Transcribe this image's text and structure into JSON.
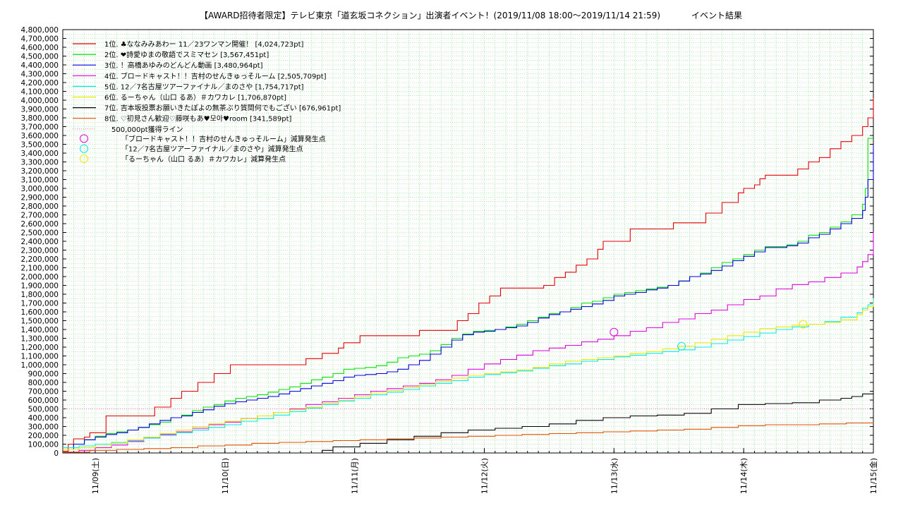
{
  "title": {
    "main": "【AWARD招待者限定】テレビ東京「道玄坂コネクション」出演者イベント！(2019/11/08 18:00〜2019/11/14 21:59)",
    "suffix": "イベント結果"
  },
  "colors": {
    "background": "#ffffff",
    "grid": "#00c800",
    "axis": "#000000"
  },
  "chart_data": {
    "type": "line",
    "x_unit": "elapsed hours from 2019/11/08 18:00",
    "xlim": [
      0,
      150
    ],
    "ylim": [
      0,
      4800000
    ],
    "y_ticks": [
      0,
      100000,
      200000,
      300000,
      400000,
      500000,
      600000,
      700000,
      800000,
      900000,
      1000000,
      1100000,
      1200000,
      1300000,
      1400000,
      1500000,
      1600000,
      1700000,
      1800000,
      1900000,
      2000000,
      2100000,
      2200000,
      2300000,
      2400000,
      2500000,
      2600000,
      2700000,
      2800000,
      2900000,
      3000000,
      3100000,
      3200000,
      3300000,
      3400000,
      3500000,
      3600000,
      3700000,
      3800000,
      3900000,
      4000000,
      4100000,
      4200000,
      4300000,
      4400000,
      4500000,
      4600000,
      4700000,
      4800000
    ],
    "y_tick_labels": [
      "0",
      "100,000",
      "200,000",
      "300,000",
      "400,000",
      "500,000",
      "600,000",
      "700,000",
      "800,000",
      "900,000",
      "1,000,000",
      "1,100,000",
      "1,200,000",
      "1,300,000",
      "1,400,000",
      "1,500,000",
      "1,600,000",
      "1,700,000",
      "1,800,000",
      "1,900,000",
      "2,000,000",
      "2,100,000",
      "2,200,000",
      "2,300,000",
      "2,400,000",
      "2,500,000",
      "2,600,000",
      "2,700,000",
      "2,800,000",
      "2,900,000",
      "3,000,000",
      "3,100,000",
      "3,200,000",
      "3,300,000",
      "3,400,000",
      "3,500,000",
      "3,600,000",
      "3,700,000",
      "3,800,000",
      "3,900,000",
      "4,000,000",
      "4,100,000",
      "4,200,000",
      "4,300,000",
      "4,400,000",
      "4,500,000",
      "4,600,000",
      "4,700,000",
      "4,800,000"
    ],
    "x_ticks": [
      6,
      30,
      54,
      78,
      102,
      126,
      150
    ],
    "x_tick_labels": [
      "11/09(土)",
      "11/10(日)",
      "11/11(月)",
      "11/12(火)",
      "11/13(水)",
      "11/14(木)",
      "11/15(金)"
    ],
    "grid": true,
    "legend_position": "top-left",
    "series": [
      {
        "name": "1位. ♣ななみみあわー 11／23ワンマン開催！ [4,024,723pt]",
        "color": "#e00000",
        "x": [
          0,
          1,
          2,
          4,
          5,
          8,
          10,
          12,
          14,
          15,
          16,
          17,
          18,
          20,
          22,
          25,
          28,
          31,
          33,
          36,
          40,
          45,
          48,
          51,
          52,
          55,
          57,
          60,
          62,
          66,
          70,
          73,
          75,
          77,
          79,
          81,
          84,
          86,
          89,
          91,
          93,
          95,
          97,
          99,
          100,
          102,
          105,
          108,
          110,
          113,
          116,
          119,
          122,
          125,
          126,
          128,
          129,
          130,
          131,
          132,
          134,
          136,
          138,
          140,
          142,
          144,
          146,
          148,
          149,
          150
        ],
        "y": [
          20000,
          100000,
          160000,
          180000,
          230000,
          420000,
          420000,
          420000,
          420000,
          420000,
          420000,
          520000,
          520000,
          620000,
          700000,
          800000,
          900000,
          1000000,
          1000000,
          1000000,
          1000000,
          1070000,
          1130000,
          1190000,
          1250000,
          1330000,
          1330000,
          1330000,
          1330000,
          1390000,
          1390000,
          1500000,
          1580000,
          1700000,
          1780000,
          1870000,
          1870000,
          1870000,
          1900000,
          1990000,
          2050000,
          2130000,
          2200000,
          2310000,
          2400000,
          2400000,
          2540000,
          2540000,
          2540000,
          2610000,
          2610000,
          2720000,
          2840000,
          2950000,
          3000000,
          3040000,
          3110000,
          3150000,
          3150000,
          3150000,
          3150000,
          3220000,
          3300000,
          3350000,
          3450000,
          3530000,
          3600000,
          3700000,
          3800000,
          4024723
        ]
      },
      {
        "name": "2位. ❤詩愛ゆまの敬語でスミマセン [3,567,451pt]",
        "color": "#00e000",
        "x": [
          0,
          2,
          4,
          6,
          8,
          10,
          12,
          14,
          16,
          18,
          20,
          22,
          24,
          26,
          28,
          30,
          32,
          34,
          36,
          38,
          40,
          42,
          44,
          46,
          48,
          50,
          52,
          54,
          56,
          58,
          60,
          62,
          64,
          66,
          68,
          70,
          72,
          74,
          76,
          78,
          80,
          82,
          84,
          86,
          88,
          90,
          92,
          94,
          96,
          98,
          100,
          102,
          104,
          106,
          108,
          110,
          112,
          114,
          116,
          118,
          120,
          122,
          124,
          126,
          128,
          130,
          132,
          134,
          136,
          138,
          140,
          142,
          144,
          146,
          148,
          148.5,
          149,
          150
        ],
        "y": [
          60000,
          100000,
          150000,
          190000,
          220000,
          240000,
          260000,
          290000,
          320000,
          350000,
          400000,
          430000,
          480000,
          520000,
          550000,
          590000,
          620000,
          640000,
          660000,
          690000,
          720000,
          750000,
          790000,
          830000,
          860000,
          900000,
          950000,
          960000,
          970000,
          990000,
          1030000,
          1080000,
          1100000,
          1120000,
          1160000,
          1230000,
          1300000,
          1350000,
          1380000,
          1390000,
          1400000,
          1430000,
          1460000,
          1500000,
          1540000,
          1580000,
          1600000,
          1650000,
          1700000,
          1720000,
          1760000,
          1800000,
          1820000,
          1840000,
          1860000,
          1880000,
          1900000,
          1950000,
          2000000,
          2040000,
          2100000,
          2160000,
          2200000,
          2250000,
          2300000,
          2340000,
          2340000,
          2360000,
          2400000,
          2470000,
          2500000,
          2560000,
          2620000,
          2700000,
          2820000,
          3000000,
          3567451,
          3567451
        ]
      },
      {
        "name": "3位. ！高橋あゆみのどんどん動画 [3,480,964pt]",
        "color": "#0000e0",
        "x": [
          0,
          2,
          4,
          6,
          8,
          10,
          12,
          14,
          16,
          18,
          20,
          22,
          24,
          26,
          28,
          30,
          32,
          34,
          36,
          38,
          40,
          42,
          44,
          46,
          48,
          50,
          52,
          54,
          56,
          58,
          60,
          62,
          64,
          66,
          68,
          70,
          72,
          74,
          76,
          78,
          80,
          82,
          84,
          86,
          88,
          90,
          92,
          94,
          96,
          98,
          100,
          102,
          104,
          106,
          108,
          110,
          112,
          114,
          116,
          118,
          120,
          122,
          124,
          126,
          128,
          130,
          132,
          134,
          136,
          138,
          140,
          142,
          144,
          146,
          148,
          148.5,
          149,
          150
        ],
        "y": [
          40000,
          100000,
          150000,
          180000,
          210000,
          230000,
          260000,
          290000,
          330000,
          370000,
          400000,
          420000,
          460000,
          490000,
          530000,
          560000,
          580000,
          600000,
          620000,
          640000,
          670000,
          700000,
          730000,
          760000,
          790000,
          820000,
          860000,
          880000,
          890000,
          900000,
          920000,
          950000,
          1000000,
          1050000,
          1120000,
          1200000,
          1280000,
          1340000,
          1370000,
          1380000,
          1400000,
          1420000,
          1440000,
          1480000,
          1530000,
          1570000,
          1600000,
          1630000,
          1660000,
          1690000,
          1730000,
          1780000,
          1800000,
          1820000,
          1850000,
          1870000,
          1900000,
          1950000,
          2000000,
          2030000,
          2070000,
          2120000,
          2180000,
          2230000,
          2280000,
          2330000,
          2330000,
          2350000,
          2380000,
          2440000,
          2480000,
          2540000,
          2600000,
          2660000,
          2750000,
          2900000,
          3100000,
          3480964
        ]
      },
      {
        "name": "4位. ブロードキャスト！！吉村のせんきゅっそルーム [2,505,709pt]",
        "color": "#e000e0",
        "x": [
          0,
          3,
          6,
          9,
          12,
          15,
          18,
          21,
          24,
          27,
          30,
          33,
          36,
          39,
          42,
          45,
          48,
          51,
          54,
          57,
          60,
          63,
          66,
          69,
          72,
          75,
          78,
          81,
          84,
          87,
          90,
          93,
          96,
          99,
          102,
          105,
          108,
          111,
          114,
          117,
          120,
          123,
          126,
          129,
          132,
          135,
          138,
          141,
          144,
          147,
          148,
          149,
          150
        ],
        "y": [
          10000,
          30000,
          60000,
          90000,
          130000,
          170000,
          210000,
          240000,
          280000,
          320000,
          350000,
          390000,
          420000,
          460000,
          500000,
          550000,
          580000,
          620000,
          660000,
          700000,
          730000,
          760000,
          790000,
          830000,
          880000,
          950000,
          1010000,
          1060000,
          1110000,
          1160000,
          1190000,
          1220000,
          1260000,
          1290000,
          1330000,
          1380000,
          1420000,
          1480000,
          1520000,
          1580000,
          1620000,
          1680000,
          1740000,
          1780000,
          1860000,
          1910000,
          1940000,
          1990000,
          2040000,
          2110000,
          2170000,
          2250000,
          2505709
        ]
      },
      {
        "name": "5位. 12／7名古屋ツアーファイナル／まのさや [1,754,717pt]",
        "color": "#00e8e8",
        "x": [
          0,
          3,
          6,
          9,
          12,
          15,
          18,
          21,
          24,
          27,
          30,
          33,
          36,
          39,
          42,
          45,
          48,
          51,
          54,
          57,
          60,
          63,
          66,
          69,
          72,
          75,
          78,
          81,
          84,
          87,
          90,
          93,
          96,
          99,
          102,
          105,
          108,
          111,
          114,
          117,
          120,
          123,
          126,
          129,
          132,
          135,
          138,
          141,
          144,
          147,
          148,
          149,
          150
        ],
        "y": [
          60000,
          80000,
          100000,
          120000,
          140000,
          170000,
          200000,
          230000,
          260000,
          290000,
          320000,
          360000,
          390000,
          430000,
          470000,
          510000,
          550000,
          590000,
          620000,
          660000,
          690000,
          720000,
          760000,
          790000,
          820000,
          860000,
          890000,
          910000,
          930000,
          960000,
          990000,
          1010000,
          1040000,
          1060000,
          1090000,
          1110000,
          1130000,
          1150000,
          1170000,
          1200000,
          1240000,
          1280000,
          1320000,
          1360000,
          1400000,
          1430000,
          1460000,
          1490000,
          1540000,
          1590000,
          1640000,
          1680000,
          1754717
        ]
      },
      {
        "name": "6位. るーちゃん（山口 るあ）＃カワカレ [1,706,870pt]",
        "color": "#e8e800",
        "x": [
          0,
          3,
          6,
          9,
          12,
          15,
          18,
          21,
          24,
          27,
          30,
          33,
          36,
          39,
          42,
          45,
          48,
          51,
          54,
          57,
          60,
          63,
          66,
          69,
          72,
          75,
          78,
          81,
          84,
          87,
          90,
          93,
          96,
          99,
          102,
          105,
          108,
          111,
          114,
          117,
          120,
          123,
          126,
          129,
          132,
          135,
          138,
          141,
          144,
          147,
          148,
          149,
          150
        ],
        "y": [
          40000,
          60000,
          80000,
          110000,
          150000,
          180000,
          220000,
          260000,
          300000,
          330000,
          360000,
          390000,
          420000,
          460000,
          490000,
          520000,
          560000,
          600000,
          640000,
          680000,
          710000,
          740000,
          780000,
          810000,
          850000,
          880000,
          900000,
          920000,
          940000,
          970000,
          1010000,
          1040000,
          1060000,
          1080000,
          1100000,
          1130000,
          1150000,
          1180000,
          1210000,
          1250000,
          1290000,
          1330000,
          1370000,
          1410000,
          1430000,
          1450000,
          1460000,
          1480000,
          1510000,
          1570000,
          1620000,
          1660000,
          1706870
        ]
      },
      {
        "name": "7位. 吉本坂投票お願いきたぽよの無茶ぶり質問何でもござい [676,961pt]",
        "color": "#000000",
        "x": [
          0,
          30,
          40,
          45,
          48,
          50,
          55,
          60,
          65,
          70,
          75,
          80,
          85,
          90,
          95,
          100,
          105,
          110,
          115,
          120,
          125,
          130,
          135,
          140,
          144,
          146,
          148,
          150
        ],
        "y": [
          0,
          0,
          0,
          0,
          30000,
          70000,
          110000,
          150000,
          190000,
          230000,
          260000,
          280000,
          300000,
          330000,
          370000,
          400000,
          420000,
          430000,
          450000,
          500000,
          550000,
          560000,
          570000,
          600000,
          620000,
          640000,
          670000,
          676961
        ]
      },
      {
        "name": "8位. ♡初見さん歓迎♡藤咲もあ♥모아♥room [341,589pt]",
        "color": "#e05000",
        "x": [
          0,
          5,
          10,
          15,
          20,
          25,
          30,
          35,
          40,
          45,
          50,
          55,
          60,
          65,
          70,
          75,
          80,
          85,
          90,
          95,
          100,
          105,
          110,
          115,
          120,
          125,
          130,
          135,
          140,
          145,
          150
        ],
        "y": [
          10000,
          30000,
          40000,
          50000,
          60000,
          80000,
          90000,
          110000,
          120000,
          130000,
          140000,
          150000,
          160000,
          170000,
          180000,
          190000,
          200000,
          210000,
          220000,
          230000,
          240000,
          250000,
          260000,
          270000,
          290000,
          310000,
          320000,
          320000,
          330000,
          340000,
          341589
        ]
      }
    ],
    "threshold_line": {
      "name": "500,000pt獲得ライン",
      "color": "#e08080",
      "value": 500000
    },
    "markers": [
      {
        "name": "「ブロードキャスト！！吉村のせんきゅっそルーム」減算発生点",
        "color": "#e000e0",
        "x": 102,
        "y": 1370000
      },
      {
        "name": "「12／7名古屋ツアーファイナル／まのさや」減算発生点",
        "color": "#00e8e8",
        "x": 114.5,
        "y": 1210000
      },
      {
        "name": "「るーちゃん（山口 るあ）＃カワカレ」減算発生点",
        "color": "#e8e800",
        "x": 137,
        "y": 1460000
      }
    ]
  }
}
